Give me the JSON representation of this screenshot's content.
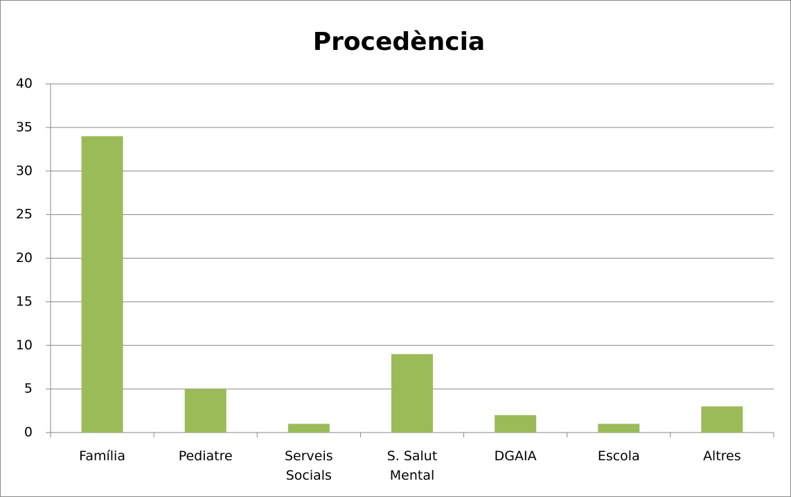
{
  "chart_data": {
    "type": "bar",
    "title": "Procedència",
    "categories": [
      "Família",
      "Pediatre",
      "Serveis Socials",
      "S. Salut Mental",
      "DGAIA",
      "Escola",
      "Altres"
    ],
    "values": [
      34,
      5,
      1,
      9,
      2,
      1,
      3
    ],
    "color": "#9bbb59",
    "ylim": [
      0,
      40
    ],
    "yticks": [
      0,
      5,
      10,
      15,
      20,
      25,
      30,
      35,
      40
    ],
    "grid": true
  }
}
